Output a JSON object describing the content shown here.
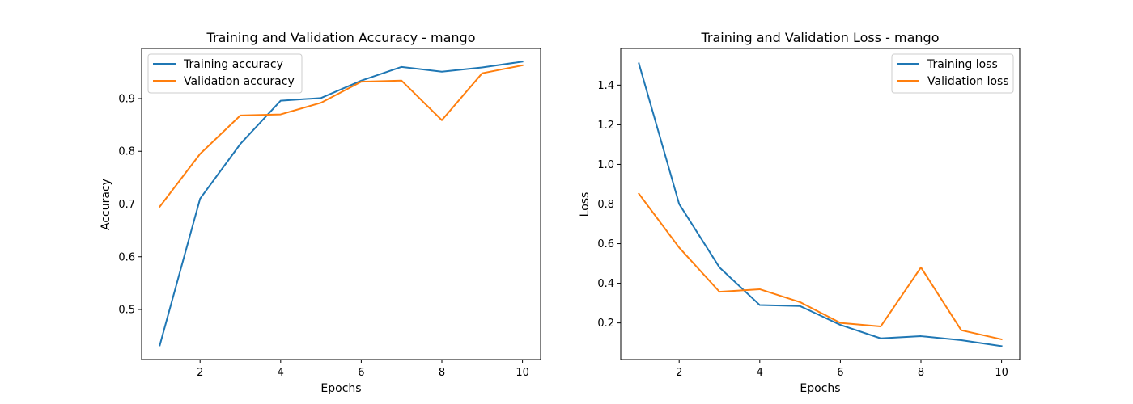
{
  "chart_data": [
    {
      "type": "line",
      "title": "Training and Validation Accuracy - mango",
      "xlabel": "Epochs",
      "ylabel": "Accuracy",
      "x": [
        1,
        2,
        3,
        4,
        5,
        6,
        7,
        8,
        9,
        10
      ],
      "xticks": [
        2,
        4,
        6,
        8,
        10
      ],
      "yticks": [
        0.5,
        0.6,
        0.7,
        0.8,
        0.9
      ],
      "xlim": [
        0.55,
        10.45
      ],
      "ylim": [
        0.405,
        0.995
      ],
      "grid": false,
      "legend_position": "upper-left",
      "series": [
        {
          "name": "Training accuracy",
          "color": "#1f77b4",
          "values": [
            0.432,
            0.71,
            0.814,
            0.896,
            0.901,
            0.934,
            0.96,
            0.951,
            0.959,
            0.97
          ]
        },
        {
          "name": "Validation accuracy",
          "color": "#ff7f0e",
          "values": [
            0.695,
            0.795,
            0.868,
            0.87,
            0.892,
            0.932,
            0.934,
            0.859,
            0.948,
            0.963
          ]
        }
      ]
    },
    {
      "type": "line",
      "title": "Training and Validation Loss - mango",
      "xlabel": "Epochs",
      "ylabel": "Loss",
      "x": [
        1,
        2,
        3,
        4,
        5,
        6,
        7,
        8,
        9,
        10
      ],
      "xticks": [
        2,
        4,
        6,
        8,
        10
      ],
      "yticks": [
        0.2,
        0.4,
        0.6,
        0.8,
        1.0,
        1.2,
        1.4
      ],
      "ytick_labels": [
        "0.2",
        "0.4",
        "0.6",
        "0.8",
        "1.0",
        "1.2",
        "1.4"
      ],
      "xlim": [
        0.55,
        10.45
      ],
      "ylim": [
        0.015,
        1.585
      ],
      "grid": false,
      "legend_position": "upper-right",
      "series": [
        {
          "name": "Training loss",
          "color": "#1f77b4",
          "values": [
            1.51,
            0.8,
            0.48,
            0.29,
            0.285,
            0.19,
            0.122,
            0.133,
            0.113,
            0.083
          ]
        },
        {
          "name": "Validation loss",
          "color": "#ff7f0e",
          "values": [
            0.852,
            0.58,
            0.357,
            0.37,
            0.305,
            0.2,
            0.182,
            0.48,
            0.163,
            0.117
          ]
        }
      ]
    }
  ]
}
